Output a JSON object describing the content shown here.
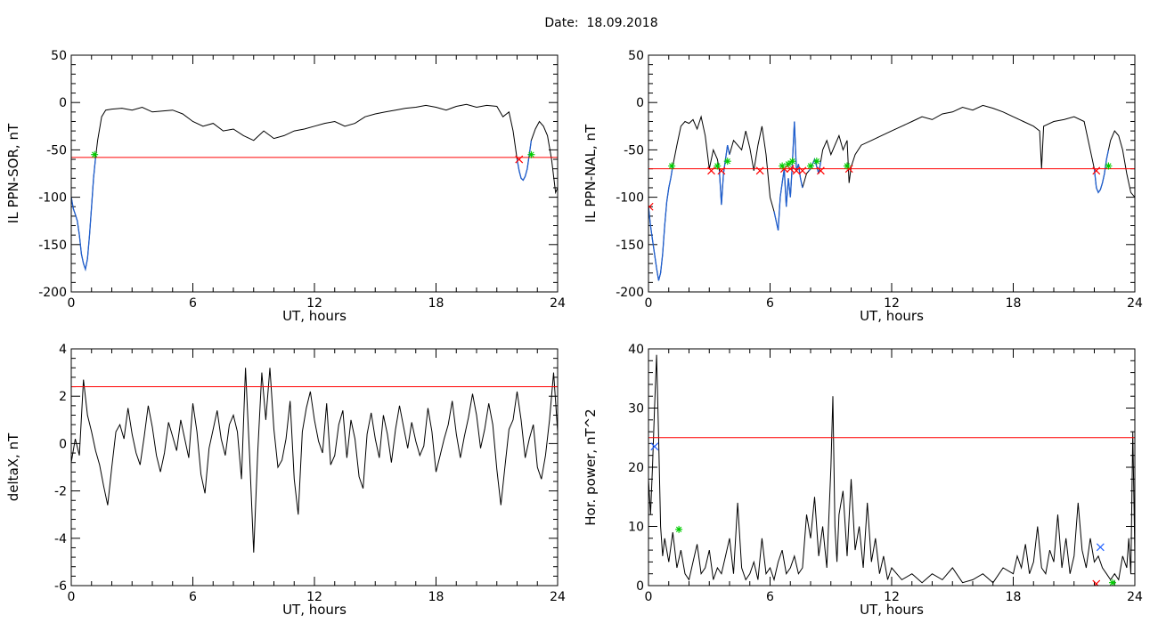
{
  "page": {
    "title": "Date:  18.09.2018"
  },
  "chart_data": [
    {
      "type": "line",
      "ylabel": "IL PPN-SOR, nT",
      "xlabel": "UT, hours",
      "xlim": [
        0,
        24
      ],
      "ylim": [
        -200,
        50
      ],
      "xticks": [
        0,
        6,
        12,
        18,
        24
      ],
      "yticks": [
        -200,
        -150,
        -100,
        -50,
        0,
        50
      ],
      "threshold": -58,
      "colors": {
        "line": "#000000",
        "highlight": "#1f5fd0",
        "threshold": "#ff0000",
        "cross": "#ff0000",
        "star": "#00cc00"
      },
      "highlight_ranges": [
        [
          0,
          1.2
        ],
        [
          22,
          22.7
        ]
      ],
      "series": [
        {
          "x": [
            0,
            0.1,
            0.2,
            0.3,
            0.4,
            0.5,
            0.6,
            0.7,
            0.8,
            0.9,
            1.0,
            1.1,
            1.2,
            1.3,
            1.5,
            1.7,
            2.0,
            2.5,
            3.0,
            3.5,
            4.0,
            4.5,
            5.0,
            5.5,
            6.0,
            6.5,
            7.0,
            7.5,
            8.0,
            8.5,
            9.0,
            9.5,
            10.0,
            10.5,
            11.0,
            11.5,
            12.0,
            12.5,
            13.0,
            13.5,
            14.0,
            14.5,
            15.0,
            15.5,
            16.0,
            16.5,
            17.0,
            17.5,
            18.0,
            18.5,
            19.0,
            19.5,
            20.0,
            20.5,
            21.0,
            21.3,
            21.6,
            21.8,
            22.0,
            22.1,
            22.2,
            22.3,
            22.4,
            22.5,
            22.6,
            22.7,
            22.9,
            23.1,
            23.3,
            23.5,
            23.7,
            23.9,
            24.0
          ],
          "y": [
            -100,
            -112,
            -118,
            -125,
            -140,
            -160,
            -170,
            -176,
            -165,
            -140,
            -110,
            -80,
            -58,
            -40,
            -15,
            -8,
            -7,
            -6,
            -8,
            -5,
            -10,
            -9,
            -8,
            -12,
            -20,
            -25,
            -22,
            -30,
            -28,
            -35,
            -40,
            -30,
            -38,
            -35,
            -30,
            -28,
            -25,
            -22,
            -20,
            -25,
            -22,
            -15,
            -12,
            -10,
            -8,
            -6,
            -5,
            -3,
            -5,
            -8,
            -4,
            -2,
            -5,
            -3,
            -4,
            -15,
            -10,
            -30,
            -60,
            -72,
            -80,
            -82,
            -78,
            -70,
            -55,
            -40,
            -28,
            -20,
            -25,
            -35,
            -60,
            -95,
            -90
          ]
        }
      ],
      "crosses": [
        [
          22.1,
          -60
        ]
      ],
      "stars": [
        [
          1.15,
          -55
        ],
        [
          22.7,
          -55
        ]
      ]
    },
    {
      "type": "line",
      "ylabel": "IL PPN-NAL, nT",
      "xlabel": "UT, hours",
      "xlim": [
        0,
        24
      ],
      "ylim": [
        -200,
        50
      ],
      "xticks": [
        0,
        6,
        12,
        18,
        24
      ],
      "yticks": [
        -200,
        -150,
        -100,
        -50,
        0,
        50
      ],
      "threshold": -70,
      "colors": {
        "line": "#000000",
        "highlight": "#1f5fd0",
        "threshold": "#ff0000",
        "cross": "#ff0000",
        "star": "#00cc00"
      },
      "highlight_ranges": [
        [
          0,
          1.2
        ],
        [
          3.5,
          4.0
        ],
        [
          6.2,
          7.6
        ],
        [
          7.9,
          8.5
        ],
        [
          22,
          22.7
        ]
      ],
      "series": [
        {
          "x": [
            0,
            0.1,
            0.2,
            0.3,
            0.4,
            0.5,
            0.6,
            0.7,
            0.8,
            0.9,
            1.0,
            1.1,
            1.2,
            1.4,
            1.6,
            1.8,
            2.0,
            2.2,
            2.4,
            2.6,
            2.8,
            3.0,
            3.2,
            3.4,
            3.5,
            3.6,
            3.7,
            3.8,
            3.9,
            4.0,
            4.2,
            4.4,
            4.6,
            4.8,
            5.0,
            5.2,
            5.4,
            5.6,
            5.8,
            6.0,
            6.2,
            6.4,
            6.5,
            6.6,
            6.7,
            6.8,
            6.9,
            7.0,
            7.1,
            7.2,
            7.3,
            7.4,
            7.5,
            7.6,
            7.8,
            8.0,
            8.2,
            8.4,
            8.6,
            8.8,
            9.0,
            9.2,
            9.4,
            9.6,
            9.8,
            9.9,
            10.0,
            10.2,
            10.5,
            11.0,
            11.5,
            12.0,
            12.5,
            13.0,
            13.5,
            14.0,
            14.5,
            15.0,
            15.5,
            16.0,
            16.5,
            17.0,
            17.5,
            18.0,
            18.5,
            19.0,
            19.3,
            19.4,
            19.5,
            20.0,
            20.5,
            21.0,
            21.5,
            22.0,
            22.1,
            22.2,
            22.3,
            22.4,
            22.5,
            22.6,
            22.8,
            23.0,
            23.2,
            23.4,
            23.6,
            23.8,
            24.0
          ],
          "y": [
            -110,
            -130,
            -145,
            -160,
            -175,
            -188,
            -180,
            -160,
            -130,
            -105,
            -90,
            -80,
            -67,
            -45,
            -25,
            -20,
            -22,
            -18,
            -28,
            -15,
            -35,
            -70,
            -50,
            -60,
            -72,
            -108,
            -75,
            -60,
            -45,
            -55,
            -40,
            -45,
            -50,
            -30,
            -48,
            -72,
            -45,
            -25,
            -55,
            -100,
            -115,
            -135,
            -100,
            -85,
            -70,
            -110,
            -80,
            -100,
            -65,
            -20,
            -72,
            -65,
            -80,
            -90,
            -75,
            -70,
            -60,
            -75,
            -50,
            -40,
            -55,
            -45,
            -35,
            -50,
            -40,
            -85,
            -68,
            -55,
            -45,
            -40,
            -35,
            -30,
            -25,
            -20,
            -15,
            -18,
            -12,
            -10,
            -5,
            -8,
            -3,
            -6,
            -10,
            -15,
            -20,
            -25,
            -30,
            -70,
            -25,
            -20,
            -18,
            -15,
            -20,
            -70,
            -90,
            -95,
            -92,
            -85,
            -75,
            -60,
            -40,
            -30,
            -35,
            -50,
            -75,
            -95,
            -100
          ]
        }
      ],
      "crosses": [
        [
          0.05,
          -110
        ],
        [
          3.1,
          -72
        ],
        [
          3.6,
          -72
        ],
        [
          5.5,
          -72
        ],
        [
          6.7,
          -70
        ],
        [
          7.0,
          -70
        ],
        [
          7.3,
          -72
        ],
        [
          7.6,
          -72
        ],
        [
          8.5,
          -72
        ],
        [
          9.9,
          -70
        ],
        [
          22.1,
          -72
        ]
      ],
      "stars": [
        [
          1.15,
          -67
        ],
        [
          3.4,
          -67
        ],
        [
          3.9,
          -62
        ],
        [
          6.6,
          -67
        ],
        [
          6.9,
          -65
        ],
        [
          7.1,
          -62
        ],
        [
          8.0,
          -67
        ],
        [
          8.3,
          -62
        ],
        [
          9.8,
          -67
        ],
        [
          22.7,
          -67
        ]
      ]
    },
    {
      "type": "line",
      "ylabel": "deltaX, nT",
      "xlabel": "UT, hours",
      "xlim": [
        0,
        24
      ],
      "ylim": [
        -6,
        4
      ],
      "xticks": [
        0,
        6,
        12,
        18,
        24
      ],
      "yticks": [
        -6,
        -4,
        -2,
        0,
        2,
        4
      ],
      "threshold": 2.4,
      "colors": {
        "line": "#000000",
        "threshold": "#ff0000"
      },
      "series": [
        {
          "x": [
            0,
            0.2,
            0.4,
            0.6,
            0.8,
            1.0,
            1.2,
            1.4,
            1.6,
            1.8,
            2.0,
            2.2,
            2.4,
            2.6,
            2.8,
            3.0,
            3.2,
            3.4,
            3.6,
            3.8,
            4.0,
            4.2,
            4.4,
            4.6,
            4.8,
            5.0,
            5.2,
            5.4,
            5.6,
            5.8,
            6.0,
            6.2,
            6.4,
            6.6,
            6.8,
            7.0,
            7.2,
            7.4,
            7.6,
            7.8,
            8.0,
            8.2,
            8.4,
            8.6,
            8.8,
            9.0,
            9.2,
            9.4,
            9.6,
            9.8,
            10.0,
            10.2,
            10.4,
            10.6,
            10.8,
            11.0,
            11.2,
            11.4,
            11.6,
            11.8,
            12.0,
            12.2,
            12.4,
            12.6,
            12.8,
            13.0,
            13.2,
            13.4,
            13.6,
            13.8,
            14.0,
            14.2,
            14.4,
            14.6,
            14.8,
            15.0,
            15.2,
            15.4,
            15.6,
            15.8,
            16.0,
            16.2,
            16.4,
            16.6,
            16.8,
            17.0,
            17.2,
            17.4,
            17.6,
            17.8,
            18.0,
            18.2,
            18.4,
            18.6,
            18.8,
            19.0,
            19.2,
            19.4,
            19.6,
            19.8,
            20.0,
            20.2,
            20.4,
            20.6,
            20.8,
            21.0,
            21.2,
            21.4,
            21.6,
            21.8,
            22.0,
            22.2,
            22.4,
            22.6,
            22.8,
            23.0,
            23.2,
            23.4,
            23.6,
            23.8,
            24.0
          ],
          "y": [
            -0.8,
            0.2,
            -0.5,
            2.7,
            1.2,
            0.5,
            -0.3,
            -0.9,
            -1.8,
            -2.6,
            -1.0,
            0.5,
            0.8,
            0.2,
            1.5,
            0.4,
            -0.4,
            -0.9,
            0.3,
            1.6,
            0.7,
            -0.5,
            -1.2,
            -0.4,
            0.9,
            0.3,
            -0.3,
            1.0,
            0.2,
            -0.6,
            1.7,
            0.5,
            -1.3,
            -2.1,
            -0.2,
            0.6,
            1.4,
            0.2,
            -0.5,
            0.8,
            1.2,
            0.5,
            -1.5,
            3.2,
            -0.5,
            -4.6,
            -0.4,
            3.0,
            1.0,
            3.2,
            0.6,
            -1.0,
            -0.7,
            0.2,
            1.8,
            -1.5,
            -3.0,
            0.5,
            1.5,
            2.2,
            1.0,
            0.1,
            -0.4,
            1.7,
            -0.9,
            -0.5,
            0.8,
            1.4,
            -0.6,
            1.0,
            0.2,
            -1.4,
            -1.9,
            0.4,
            1.3,
            0.2,
            -0.6,
            1.2,
            0.4,
            -0.8,
            0.6,
            1.6,
            0.7,
            -0.2,
            0.9,
            0.1,
            -0.5,
            -0.1,
            1.5,
            0.5,
            -1.2,
            -0.5,
            0.2,
            0.8,
            1.8,
            0.4,
            -0.6,
            0.3,
            1.1,
            2.1,
            1.2,
            -0.2,
            0.6,
            1.7,
            0.8,
            -1.1,
            -2.6,
            -1.0,
            0.6,
            1.0,
            2.2,
            1.0,
            -0.6,
            0.2,
            0.8,
            -1.0,
            -1.5,
            -0.5,
            1.0,
            3.0,
            0.5
          ]
        }
      ]
    },
    {
      "type": "line",
      "ylabel": "Hor. power, nT^2",
      "xlabel": "UT, hours",
      "xlim": [
        0,
        24
      ],
      "ylim": [
        0,
        40
      ],
      "xticks": [
        0,
        6,
        12,
        18,
        24
      ],
      "yticks": [
        0,
        10,
        20,
        30,
        40
      ],
      "threshold": 25,
      "colors": {
        "line": "#000000",
        "threshold": "#ff0000",
        "cross": "#ff0000",
        "blue_cross": "#2060ff",
        "star": "#00cc00"
      },
      "series": [
        {
          "x": [
            0,
            0.1,
            0.2,
            0.3,
            0.4,
            0.5,
            0.6,
            0.7,
            0.8,
            1.0,
            1.2,
            1.4,
            1.6,
            1.8,
            2.0,
            2.2,
            2.4,
            2.6,
            2.8,
            3.0,
            3.2,
            3.4,
            3.6,
            3.8,
            4.0,
            4.2,
            4.4,
            4.6,
            4.8,
            5.0,
            5.2,
            5.4,
            5.6,
            5.8,
            6.0,
            6.2,
            6.4,
            6.6,
            6.8,
            7.0,
            7.2,
            7.4,
            7.6,
            7.8,
            8.0,
            8.2,
            8.4,
            8.6,
            8.8,
            9.0,
            9.1,
            9.2,
            9.3,
            9.4,
            9.6,
            9.8,
            10.0,
            10.2,
            10.4,
            10.6,
            10.8,
            11.0,
            11.2,
            11.4,
            11.6,
            11.8,
            12.0,
            12.5,
            13.0,
            13.5,
            14.0,
            14.5,
            15.0,
            15.5,
            16.0,
            16.5,
            17.0,
            17.5,
            18.0,
            18.2,
            18.4,
            18.6,
            18.8,
            19.0,
            19.2,
            19.4,
            19.6,
            19.8,
            20.0,
            20.2,
            20.4,
            20.6,
            20.8,
            21.0,
            21.2,
            21.4,
            21.6,
            21.8,
            22.0,
            22.2,
            22.4,
            22.6,
            22.8,
            23.0,
            23.2,
            23.4,
            23.6,
            23.7,
            23.8,
            23.9,
            24.0
          ],
          "y": [
            18,
            12,
            20,
            30,
            39,
            25,
            10,
            5,
            8,
            4,
            9,
            3,
            6,
            2,
            1,
            4,
            7,
            2,
            3,
            6,
            1,
            3,
            2,
            5,
            8,
            2,
            14,
            3,
            1,
            2,
            4,
            1,
            8,
            2,
            3,
            1,
            4,
            6,
            2,
            3,
            5,
            2,
            3,
            12,
            8,
            15,
            5,
            10,
            3,
            20,
            32,
            10,
            4,
            12,
            16,
            5,
            18,
            6,
            10,
            3,
            14,
            4,
            8,
            2,
            5,
            1,
            3,
            1,
            2,
            0.5,
            2,
            1,
            3,
            0.5,
            1,
            2,
            0.5,
            3,
            2,
            5,
            3,
            7,
            2,
            4,
            10,
            3,
            2,
            6,
            4,
            12,
            3,
            8,
            2,
            5,
            14,
            6,
            3,
            8,
            4,
            5,
            3,
            2,
            1,
            2,
            1,
            5,
            3,
            8,
            2,
            26,
            5
          ]
        }
      ],
      "crosses": [
        [
          22.1,
          0.3
        ]
      ],
      "blue_crosses": [
        [
          0.3,
          23.5
        ],
        [
          22.3,
          6.5
        ]
      ],
      "stars": [
        [
          1.5,
          9.5
        ],
        [
          22.9,
          0.5
        ]
      ]
    }
  ]
}
